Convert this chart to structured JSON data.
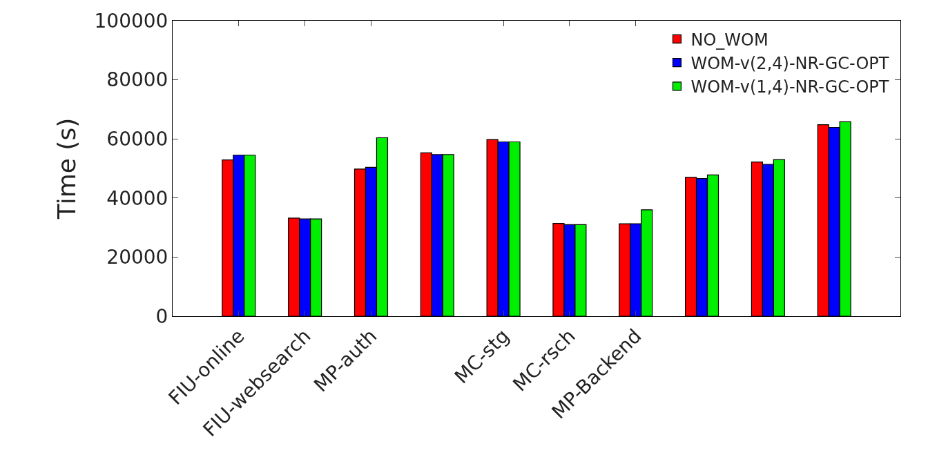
{
  "chart_data": {
    "type": "bar",
    "ylabel": "Time (s)",
    "categories": [
      "FIU-online",
      "FIU-websearch",
      "MP-auth",
      null,
      "MC-stg",
      "MC-rsch",
      "MP-Backend",
      null,
      null,
      null
    ],
    "series": [
      {
        "name": "NO_WOM",
        "color": "#ff0000",
        "values": [
          52900,
          33200,
          49800,
          55300,
          59800,
          31400,
          31300,
          47000,
          52200,
          64800
        ]
      },
      {
        "name": "WOM-v(2,4)-NR-GC-OPT",
        "color": "#0000ff",
        "values": [
          54500,
          32900,
          50400,
          54700,
          59000,
          31000,
          31300,
          46600,
          51400,
          63900
        ]
      },
      {
        "name": "WOM-v(1,4)-NR-GC-OPT",
        "color": "#00ee00",
        "values": [
          54500,
          32900,
          60400,
          54700,
          59000,
          31000,
          36000,
          47800,
          53000,
          65800
        ]
      }
    ],
    "ylim": [
      0,
      100000
    ],
    "yticks": [
      0,
      20000,
      40000,
      60000,
      80000,
      100000
    ],
    "legend": "top right"
  }
}
